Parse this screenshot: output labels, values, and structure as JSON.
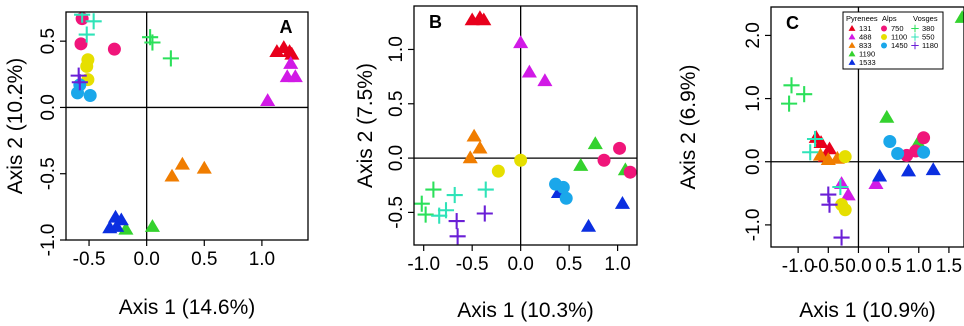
{
  "figure": {
    "title": ""
  },
  "palette": {
    "131": "#e8001c",
    "488": "#d11ae6",
    "833": "#f07d00",
    "1190": "#34d22e",
    "1533": "#0b2fe0",
    "750": "#f0157a",
    "1100": "#e6df00",
    "1450": "#1aa7ea",
    "380": "#2be05a",
    "550": "#2fe3b8",
    "1180": "#6a1fd6"
  },
  "chart_data": [
    {
      "type": "scatter",
      "panel_label": "A",
      "xlabel": "Axis 1 (14.6%)",
      "ylabel": "Axis 2 (10.2%)",
      "xlim": [
        -0.7,
        1.4
      ],
      "ylim": [
        -1.0,
        0.72
      ],
      "xticks": [
        -0.5,
        0.0,
        0.5,
        1.0
      ],
      "xtick_labels": [
        "-0.5",
        "0.0",
        "0.5",
        "1.0"
      ],
      "yticks": [
        -1.0,
        -0.5,
        0.0,
        0.5
      ],
      "ytick_labels": [
        "-1.0",
        "-0.5",
        "0.0",
        "0.5"
      ],
      "grid": false,
      "points": [
        {
          "x": 1.13,
          "y": 0.42,
          "marker": "triangle",
          "group": "131"
        },
        {
          "x": 1.19,
          "y": 0.45,
          "marker": "triangle",
          "group": "131"
        },
        {
          "x": 1.24,
          "y": 0.42,
          "marker": "triangle",
          "group": "131"
        },
        {
          "x": 1.26,
          "y": 0.4,
          "marker": "triangle",
          "group": "131"
        },
        {
          "x": 1.05,
          "y": 0.05,
          "marker": "triangle",
          "group": "488"
        },
        {
          "x": 1.22,
          "y": 0.23,
          "marker": "triangle",
          "group": "488"
        },
        {
          "x": 1.29,
          "y": 0.23,
          "marker": "triangle",
          "group": "488"
        },
        {
          "x": 1.25,
          "y": 0.33,
          "marker": "triangle",
          "group": "488"
        },
        {
          "x": 0.22,
          "y": -0.52,
          "marker": "triangle",
          "group": "833"
        },
        {
          "x": 0.31,
          "y": -0.43,
          "marker": "triangle",
          "group": "833"
        },
        {
          "x": 0.5,
          "y": -0.46,
          "marker": "triangle",
          "group": "833"
        },
        {
          "x": 0.05,
          "y": -0.9,
          "marker": "triangle",
          "group": "1190"
        },
        {
          "x": -0.18,
          "y": -0.92,
          "marker": "triangle",
          "group": "1190"
        },
        {
          "x": -0.22,
          "y": -0.85,
          "marker": "triangle",
          "group": "1533"
        },
        {
          "x": -0.27,
          "y": -0.83,
          "marker": "triangle",
          "group": "1533"
        },
        {
          "x": -0.26,
          "y": -0.9,
          "marker": "triangle",
          "group": "1533"
        },
        {
          "x": -0.32,
          "y": -0.91,
          "marker": "triangle",
          "group": "1533"
        },
        {
          "x": -0.56,
          "y": 0.67,
          "marker": "circle",
          "group": "750"
        },
        {
          "x": -0.57,
          "y": 0.48,
          "marker": "circle",
          "group": "750"
        },
        {
          "x": -0.28,
          "y": 0.44,
          "marker": "circle",
          "group": "750"
        },
        {
          "x": -0.51,
          "y": 0.36,
          "marker": "circle",
          "group": "1100"
        },
        {
          "x": -0.52,
          "y": 0.31,
          "marker": "circle",
          "group": "1100"
        },
        {
          "x": -0.51,
          "y": 0.21,
          "marker": "circle",
          "group": "1100"
        },
        {
          "x": -0.6,
          "y": 0.11,
          "marker": "circle",
          "group": "1450"
        },
        {
          "x": -0.49,
          "y": 0.09,
          "marker": "circle",
          "group": "1450"
        },
        {
          "x": -0.58,
          "y": 0.17,
          "marker": "circle",
          "group": "1450"
        },
        {
          "x": 0.03,
          "y": 0.53,
          "marker": "plus",
          "group": "380"
        },
        {
          "x": 0.05,
          "y": 0.49,
          "marker": "plus",
          "group": "380"
        },
        {
          "x": 0.21,
          "y": 0.37,
          "marker": "plus",
          "group": "380"
        },
        {
          "x": -0.56,
          "y": 0.7,
          "marker": "plus",
          "group": "550"
        },
        {
          "x": -0.46,
          "y": 0.65,
          "marker": "plus",
          "group": "550"
        },
        {
          "x": -0.52,
          "y": 0.55,
          "marker": "plus",
          "group": "550"
        },
        {
          "x": -0.59,
          "y": 0.24,
          "marker": "plus",
          "group": "1180"
        },
        {
          "x": -0.58,
          "y": 0.19,
          "marker": "plus",
          "group": "1180"
        }
      ]
    },
    {
      "type": "scatter",
      "panel_label": "B",
      "xlabel": "Axis 1 (10.3%)",
      "ylabel": "Axis 2 (7.5%)",
      "xlim": [
        -1.1,
        1.2
      ],
      "ylim": [
        -0.8,
        1.4
      ],
      "xticks": [
        -1.0,
        -0.5,
        0.0,
        0.5,
        1.0
      ],
      "xtick_labels": [
        "-1.0",
        "-0.5",
        "0.0",
        "0.5",
        "1.0"
      ],
      "yticks": [
        -0.5,
        0.0,
        0.5,
        1.0
      ],
      "ytick_labels": [
        "-0.5",
        "0.0",
        "0.5",
        "1.0"
      ],
      "grid": false,
      "points": [
        {
          "x": -0.5,
          "y": 1.27,
          "marker": "triangle",
          "group": "131"
        },
        {
          "x": -0.42,
          "y": 1.29,
          "marker": "triangle",
          "group": "131"
        },
        {
          "x": -0.38,
          "y": 1.27,
          "marker": "triangle",
          "group": "131"
        },
        {
          "x": 0.0,
          "y": 1.06,
          "marker": "triangle",
          "group": "488"
        },
        {
          "x": 0.09,
          "y": 0.79,
          "marker": "triangle",
          "group": "488"
        },
        {
          "x": 0.25,
          "y": 0.71,
          "marker": "triangle",
          "group": "488"
        },
        {
          "x": -0.48,
          "y": 0.2,
          "marker": "triangle",
          "group": "833"
        },
        {
          "x": -0.42,
          "y": 0.09,
          "marker": "triangle",
          "group": "833"
        },
        {
          "x": -0.52,
          "y": 0.0,
          "marker": "triangle",
          "group": "833"
        },
        {
          "x": 0.62,
          "y": -0.07,
          "marker": "triangle",
          "group": "1190"
        },
        {
          "x": 0.77,
          "y": 0.13,
          "marker": "triangle",
          "group": "1190"
        },
        {
          "x": 1.08,
          "y": -0.11,
          "marker": "triangle",
          "group": "1190"
        },
        {
          "x": 0.39,
          "y": -0.32,
          "marker": "triangle",
          "group": "1533"
        },
        {
          "x": 0.7,
          "y": -0.63,
          "marker": "triangle",
          "group": "1533"
        },
        {
          "x": 1.05,
          "y": -0.42,
          "marker": "triangle",
          "group": "1533"
        },
        {
          "x": 0.86,
          "y": -0.02,
          "marker": "circle",
          "group": "750"
        },
        {
          "x": 1.02,
          "y": 0.09,
          "marker": "circle",
          "group": "750"
        },
        {
          "x": 1.13,
          "y": -0.13,
          "marker": "circle",
          "group": "750"
        },
        {
          "x": 0.0,
          "y": -0.02,
          "marker": "circle",
          "group": "1100"
        },
        {
          "x": -0.23,
          "y": -0.12,
          "marker": "circle",
          "group": "1100"
        },
        {
          "x": 0.36,
          "y": -0.24,
          "marker": "circle",
          "group": "1450"
        },
        {
          "x": 0.44,
          "y": -0.27,
          "marker": "circle",
          "group": "1450"
        },
        {
          "x": 0.47,
          "y": -0.37,
          "marker": "circle",
          "group": "1450"
        },
        {
          "x": -1.02,
          "y": -0.42,
          "marker": "plus",
          "group": "380"
        },
        {
          "x": -0.98,
          "y": -0.52,
          "marker": "plus",
          "group": "380"
        },
        {
          "x": -0.9,
          "y": -0.29,
          "marker": "plus",
          "group": "380"
        },
        {
          "x": -0.84,
          "y": -0.53,
          "marker": "plus",
          "group": "550"
        },
        {
          "x": -0.77,
          "y": -0.48,
          "marker": "plus",
          "group": "550"
        },
        {
          "x": -0.68,
          "y": -0.34,
          "marker": "plus",
          "group": "550"
        },
        {
          "x": -0.36,
          "y": -0.29,
          "marker": "plus",
          "group": "550"
        },
        {
          "x": -0.65,
          "y": -0.72,
          "marker": "plus",
          "group": "1180"
        },
        {
          "x": -0.66,
          "y": -0.58,
          "marker": "plus",
          "group": "1180"
        },
        {
          "x": -0.37,
          "y": -0.51,
          "marker": "plus",
          "group": "1180"
        }
      ]
    },
    {
      "type": "scatter",
      "panel_label": "C",
      "xlabel": "Axis 1 (10.9%)",
      "ylabel": "Axis 2 (6.9%)",
      "xlim": [
        -1.45,
        1.75
      ],
      "ylim": [
        -1.35,
        2.45
      ],
      "xticks": [
        -1.0,
        -0.5,
        0.0,
        0.5,
        1.0,
        1.5
      ],
      "xtick_labels": [
        "-1.0",
        "-0.5",
        "0.0",
        "0.5",
        "1.0",
        "1.5"
      ],
      "yticks": [
        -1.0,
        0.0,
        1.0,
        2.0
      ],
      "ytick_labels": [
        "-1.0",
        "0.0",
        "1.0",
        "2.0"
      ],
      "grid": false,
      "points": [
        {
          "x": -0.7,
          "y": 0.38,
          "marker": "triangle",
          "group": "131"
        },
        {
          "x": -0.62,
          "y": 0.3,
          "marker": "triangle",
          "group": "131"
        },
        {
          "x": -0.48,
          "y": 0.2,
          "marker": "triangle",
          "group": "131"
        },
        {
          "x": -0.55,
          "y": 0.08,
          "marker": "triangle",
          "group": "131"
        },
        {
          "x": -0.28,
          "y": -0.35,
          "marker": "triangle",
          "group": "488"
        },
        {
          "x": -0.17,
          "y": -0.53,
          "marker": "triangle",
          "group": "488"
        },
        {
          "x": 0.29,
          "y": -0.35,
          "marker": "triangle",
          "group": "488"
        },
        {
          "x": -0.63,
          "y": 0.1,
          "marker": "triangle",
          "group": "833"
        },
        {
          "x": -0.5,
          "y": 0.03,
          "marker": "triangle",
          "group": "833"
        },
        {
          "x": -0.35,
          "y": 0.05,
          "marker": "triangle",
          "group": "833"
        },
        {
          "x": 0.47,
          "y": 0.7,
          "marker": "triangle",
          "group": "1190"
        },
        {
          "x": 0.99,
          "y": 0.3,
          "marker": "triangle",
          "group": "1190"
        },
        {
          "x": 1.72,
          "y": 2.28,
          "marker": "triangle",
          "group": "1190"
        },
        {
          "x": 0.35,
          "y": -0.23,
          "marker": "triangle",
          "group": "1533"
        },
        {
          "x": 0.83,
          "y": -0.15,
          "marker": "triangle",
          "group": "1533"
        },
        {
          "x": 1.24,
          "y": -0.13,
          "marker": "triangle",
          "group": "1533"
        },
        {
          "x": 0.8,
          "y": 0.1,
          "marker": "circle",
          "group": "750"
        },
        {
          "x": 0.95,
          "y": 0.17,
          "marker": "circle",
          "group": "750"
        },
        {
          "x": 1.08,
          "y": 0.38,
          "marker": "circle",
          "group": "750"
        },
        {
          "x": -0.22,
          "y": 0.08,
          "marker": "circle",
          "group": "1100"
        },
        {
          "x": -0.28,
          "y": -0.68,
          "marker": "circle",
          "group": "1100"
        },
        {
          "x": -0.22,
          "y": -0.76,
          "marker": "circle",
          "group": "1100"
        },
        {
          "x": 0.52,
          "y": 0.32,
          "marker": "circle",
          "group": "1450"
        },
        {
          "x": 0.65,
          "y": 0.13,
          "marker": "circle",
          "group": "1450"
        },
        {
          "x": 1.08,
          "y": 0.15,
          "marker": "circle",
          "group": "1450"
        },
        {
          "x": -1.15,
          "y": 0.92,
          "marker": "plus",
          "group": "380"
        },
        {
          "x": -1.11,
          "y": 1.21,
          "marker": "plus",
          "group": "380"
        },
        {
          "x": -0.9,
          "y": 1.07,
          "marker": "plus",
          "group": "380"
        },
        {
          "x": -0.8,
          "y": 0.15,
          "marker": "plus",
          "group": "550"
        },
        {
          "x": -0.72,
          "y": 0.36,
          "marker": "plus",
          "group": "550"
        },
        {
          "x": -0.3,
          "y": -0.4,
          "marker": "plus",
          "group": "550"
        },
        {
          "x": -0.5,
          "y": -0.52,
          "marker": "plus",
          "group": "1180"
        },
        {
          "x": -0.48,
          "y": -0.68,
          "marker": "plus",
          "group": "1180"
        },
        {
          "x": -0.28,
          "y": -1.2,
          "marker": "plus",
          "group": "1180"
        }
      ],
      "legend": {
        "placement": "top-right",
        "columns": [
          {
            "title": "Pyrenees",
            "entries": [
              {
                "label": "131",
                "marker": "triangle",
                "group": "131"
              },
              {
                "label": "488",
                "marker": "triangle",
                "group": "488"
              },
              {
                "label": "833",
                "marker": "triangle",
                "group": "833"
              },
              {
                "label": "1190",
                "marker": "triangle",
                "group": "1190"
              },
              {
                "label": "1533",
                "marker": "triangle",
                "group": "1533"
              }
            ]
          },
          {
            "title": "Alps",
            "entries": [
              {
                "label": "750",
                "marker": "circle",
                "group": "750"
              },
              {
                "label": "1100",
                "marker": "circle",
                "group": "1100"
              },
              {
                "label": "1450",
                "marker": "circle",
                "group": "1450"
              }
            ]
          },
          {
            "title": "Vosges",
            "entries": [
              {
                "label": "380",
                "marker": "plus",
                "group": "380"
              },
              {
                "label": "550",
                "marker": "plus",
                "group": "550"
              },
              {
                "label": "1180",
                "marker": "plus",
                "group": "1180"
              }
            ]
          }
        ]
      }
    }
  ]
}
